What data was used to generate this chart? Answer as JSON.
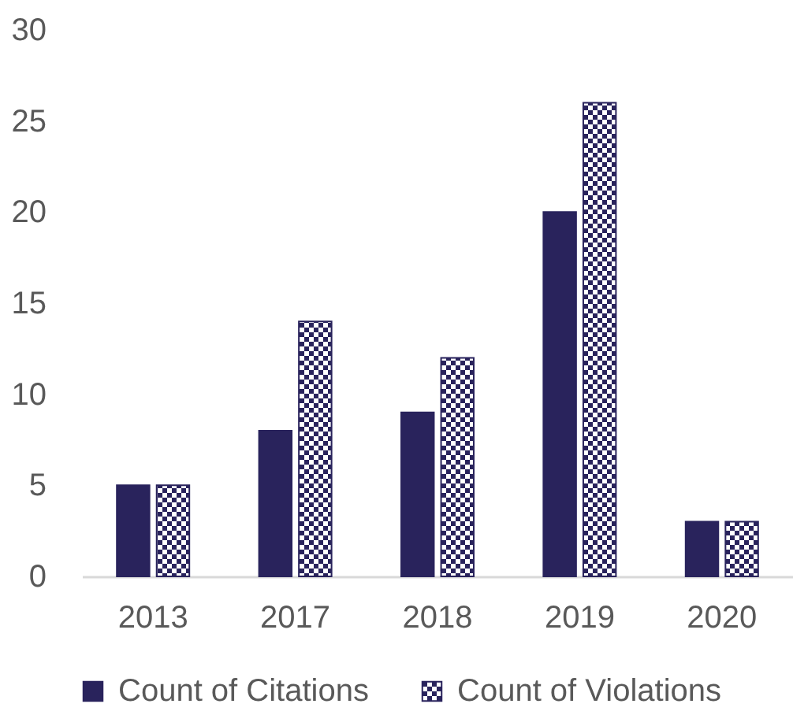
{
  "chart_data": {
    "type": "bar",
    "categories": [
      "2013",
      "2017",
      "2018",
      "2019",
      "2020"
    ],
    "series": [
      {
        "name": "Count of Citations",
        "color": "#29235c",
        "values": [
          5,
          8,
          9,
          20,
          3
        ]
      },
      {
        "name": "Count of Violations",
        "color": "#29235c",
        "values": [
          5,
          14,
          12,
          26,
          3
        ]
      }
    ],
    "ylim": [
      0,
      30
    ],
    "yticks": [
      0,
      5,
      10,
      15,
      20,
      25,
      30
    ],
    "grid": false,
    "legend": "bottom"
  }
}
